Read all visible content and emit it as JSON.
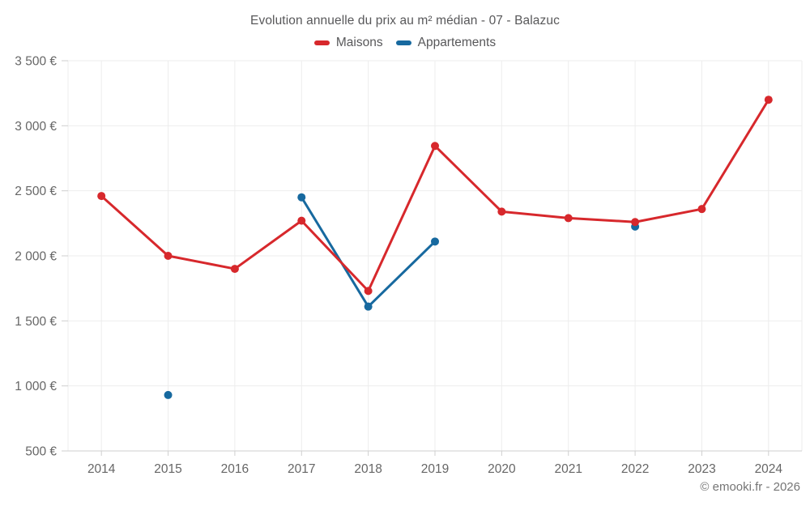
{
  "title": "Evolution annuelle du prix au m² médian - 07 - Balazuc",
  "legend": [
    {
      "label": "Maisons",
      "color": "#d7282c"
    },
    {
      "label": "Appartements",
      "color": "#17699f"
    }
  ],
  "footer": {
    "copyright": "© emooki.fr - 2026"
  },
  "colors": {
    "maisons": "#d7282c",
    "appartements": "#17699f",
    "gridline": "#ededed",
    "axis": "#cfcfcf",
    "tick_label": "#666666",
    "title_text": "#58585a",
    "background": "#ffffff"
  },
  "chart_data": {
    "type": "line",
    "title": "Evolution annuelle du prix au m² médian - 07 - Balazuc",
    "categories": [
      2014,
      2015,
      2016,
      2017,
      2018,
      2019,
      2020,
      2021,
      2022,
      2023,
      2024
    ],
    "x_tick_labels": [
      "2014",
      "2015",
      "2016",
      "2017",
      "2018",
      "2019",
      "2020",
      "2021",
      "2022",
      "2023",
      "2024"
    ],
    "series": [
      {
        "name": "Maisons",
        "color": "#d7282c",
        "values": [
          2460,
          2000,
          1900,
          2270,
          1730,
          2845,
          2340,
          2290,
          2260,
          2360,
          3200
        ]
      },
      {
        "name": "Appartements",
        "color": "#17699f",
        "values": [
          null,
          930,
          null,
          2450,
          1610,
          2110,
          null,
          null,
          2225,
          null,
          null
        ]
      }
    ],
    "xlabel": "",
    "ylabel": "",
    "ylim": [
      500,
      3500
    ],
    "y_ticks": [
      500,
      1000,
      1500,
      2000,
      2500,
      3000,
      3500
    ],
    "y_tick_labels": [
      "500 €",
      "1 000 €",
      "1 500 €",
      "2 000 €",
      "2 500 €",
      "3 000 €",
      "3 500 €"
    ],
    "grid": true,
    "legend_position": "top"
  }
}
